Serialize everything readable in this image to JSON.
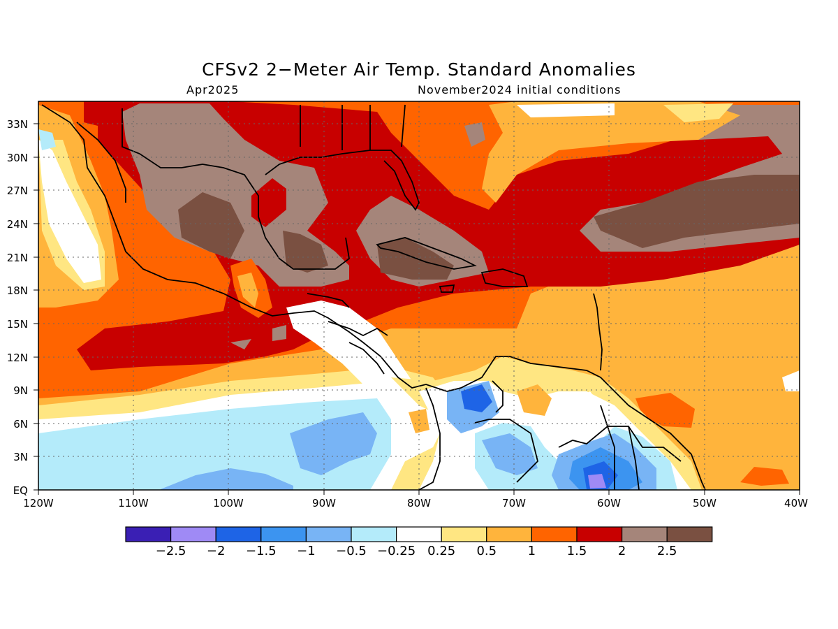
{
  "title": "CFSv2 2−Meter Air Temp. Standard Anomalies",
  "valid_month": "Apr2025",
  "initial_conditions": "November2024 initial conditions",
  "map": {
    "lon_range": [
      -120,
      -40
    ],
    "lat_range": [
      0,
      35
    ],
    "lat_ticks": [
      "33N",
      "30N",
      "27N",
      "24N",
      "21N",
      "18N",
      "15N",
      "12N",
      "9N",
      "6N",
      "3N",
      "EQ"
    ],
    "lon_ticks": [
      "120W",
      "110W",
      "100W",
      "90W",
      "80W",
      "70W",
      "60W",
      "50W",
      "40W"
    ],
    "grid": "dotted"
  },
  "colorbar": {
    "colors": [
      "#3a1fb4",
      "#9f8af5",
      "#1e64e6",
      "#3c94f0",
      "#78b4f5",
      "#b4ebfa",
      "#ffffff",
      "#ffe682",
      "#ffb43c",
      "#ff6400",
      "#c80000",
      "#a5857a",
      "#7a5041"
    ],
    "labels": [
      "−2.5",
      "−2",
      "−1.5",
      "−1",
      "−0.5",
      "−0.25",
      "0.25",
      "0.5",
      "1",
      "1.5",
      "2",
      "2.5"
    ]
  }
}
